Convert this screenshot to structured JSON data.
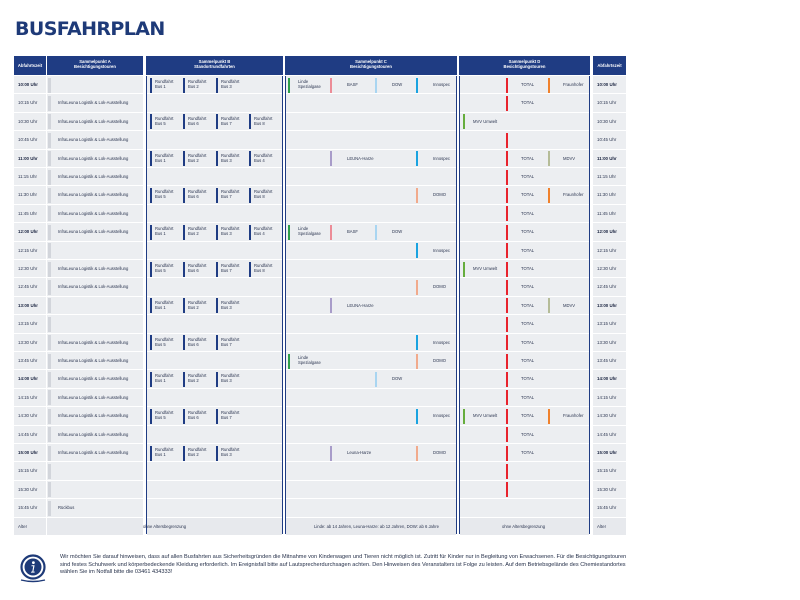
{
  "title": "BUSFAHRPLAN",
  "headers": {
    "time_left": "Abfahrtszeit",
    "time_right": "Abfahrtszeit",
    "a": [
      "Sammelpunkt A",
      "Besichtigungstouren"
    ],
    "b": [
      "Sammelpunkt B",
      "Standortrundfahrten"
    ],
    "c": [
      "Sammelpunkt C",
      "Besichtigungstouren"
    ],
    "d": [
      "Sammelpunkt D",
      "Besichtigungstouren"
    ]
  },
  "colors": {
    "navy": "#1f3c83",
    "linde": "#2e9e4a",
    "basf": "#ec8c97",
    "dow": "#a9d5f1",
    "innospec": "#1aa3e0",
    "leuna": "#a89cc9",
    "domo": "#f1aa8c",
    "mvv": "#66ad3d",
    "total": "#e8232d",
    "fraunhofer": "#f0812c",
    "mdvv": "#b5bc98"
  },
  "rows": [
    {
      "time": "10:00 Uhr",
      "bold": true,
      "a": "",
      "b": [
        [
          "Rundfahrt",
          "Bus 1"
        ],
        [
          "Rundfahrt",
          "Bus 2"
        ],
        [
          "Rundfahrt",
          "Bus 3"
        ]
      ],
      "c": [
        {
          "name": [
            "Linde",
            "Spezialgase"
          ],
          "color": "linde",
          "slot": 0
        },
        {
          "name": [
            "BASF"
          ],
          "color": "basf",
          "slot": 1
        },
        {
          "name": [
            "DOW"
          ],
          "color": "dow",
          "slot": 2
        },
        {
          "name": [
            "Innospec"
          ],
          "color": "innospec",
          "slot": 3
        }
      ],
      "d": [
        {
          "name": [
            "TOTAL"
          ],
          "color": "total",
          "slot": 1
        },
        {
          "name": [
            "Fraunhofer"
          ],
          "color": "fraunhofer",
          "slot": 2
        }
      ]
    },
    {
      "time": "10:15 Uhr",
      "bold": false,
      "a": "InfraLeuna Logistik & Lok-Ausstellung",
      "b": [],
      "c": [],
      "d": [
        {
          "name": [
            "TOTAL"
          ],
          "color": "total",
          "slot": 1
        }
      ]
    },
    {
      "time": "10:30 Uhr",
      "bold": false,
      "a": "InfraLeuna Logistik & Lok-Ausstellung",
      "b": [
        [
          "Rundfahrt",
          "Bus 5"
        ],
        [
          "Rundfahrt",
          "Bus 6"
        ],
        [
          "Rundfahrt",
          "Bus 7"
        ],
        [
          "Rundfahrt",
          "Bus 8"
        ]
      ],
      "c": [],
      "d": [
        {
          "name": [
            "MVV Umwelt"
          ],
          "color": "mvv",
          "slot": 0
        }
      ]
    },
    {
      "time": "10:45 Uhr",
      "bold": false,
      "a": "InfraLeuna Logistik & Lok-Ausstellung",
      "b": [],
      "c": [],
      "d": [
        {
          "name": [
            ""
          ],
          "color": "total",
          "slot": 1
        }
      ]
    },
    {
      "time": "11:00 Uhr",
      "bold": true,
      "a": "InfraLeuna Logistik & Lok-Ausstellung",
      "b": [
        [
          "Rundfahrt",
          "Bus 1"
        ],
        [
          "Rundfahrt",
          "Bus 2"
        ],
        [
          "Rundfahrt",
          "Bus 3"
        ],
        [
          "Rundfahrt",
          "Bus 4"
        ]
      ],
      "c": [
        {
          "name": [
            "LEUNA-Harze"
          ],
          "color": "leuna",
          "slot": 1
        },
        {
          "name": [
            "Innospec"
          ],
          "color": "innospec",
          "slot": 3
        }
      ],
      "d": [
        {
          "name": [
            "TOTAL"
          ],
          "color": "total",
          "slot": 1
        },
        {
          "name": [
            "MDVV"
          ],
          "color": "mdvv",
          "slot": 2
        }
      ]
    },
    {
      "time": "11:15 Uhr",
      "bold": false,
      "a": "InfraLeuna Logistik & Lok-Ausstellung",
      "b": [],
      "c": [],
      "d": [
        {
          "name": [
            "TOTAL"
          ],
          "color": "total",
          "slot": 1
        }
      ]
    },
    {
      "time": "11:30 Uhr",
      "bold": false,
      "a": "InfraLeuna Logistik & Lok-Ausstellung",
      "b": [
        [
          "Rundfahrt",
          "Bus 5"
        ],
        [
          "Rundfahrt",
          "Bus 6"
        ],
        [
          "Rundfahrt",
          "Bus 7"
        ],
        [
          "Rundfahrt",
          "Bus 8"
        ]
      ],
      "c": [
        {
          "name": [
            "DOMO"
          ],
          "color": "domo",
          "slot": 3
        }
      ],
      "d": [
        {
          "name": [
            "TOTAL"
          ],
          "color": "total",
          "slot": 1
        },
        {
          "name": [
            "Fraunhofer"
          ],
          "color": "fraunhofer",
          "slot": 2
        }
      ]
    },
    {
      "time": "11:45 Uhr",
      "bold": false,
      "a": "InfraLeuna Logistik & Lok-Ausstellung",
      "b": [],
      "c": [],
      "d": [
        {
          "name": [
            "TOTAL"
          ],
          "color": "total",
          "slot": 1
        }
      ]
    },
    {
      "time": "12:00 Uhr",
      "bold": true,
      "a": "InfraLeuna Logistik & Lok-Ausstellung",
      "b": [
        [
          "Rundfahrt",
          "Bus 1"
        ],
        [
          "Rundfahrt",
          "Bus 2"
        ],
        [
          "Rundfahrt",
          "Bus 3"
        ],
        [
          "Rundfahrt",
          "Bus 4"
        ]
      ],
      "c": [
        {
          "name": [
            "Linde",
            "Spezialgase"
          ],
          "color": "linde",
          "slot": 0
        },
        {
          "name": [
            "BASF"
          ],
          "color": "basf",
          "slot": 1
        },
        {
          "name": [
            "DOW"
          ],
          "color": "dow",
          "slot": 2
        }
      ],
      "d": [
        {
          "name": [
            "TOTAL"
          ],
          "color": "total",
          "slot": 1
        }
      ]
    },
    {
      "time": "12:15 Uhr",
      "bold": false,
      "a": "",
      "b": [],
      "c": [
        {
          "name": [
            "Innospec"
          ],
          "color": "innospec",
          "slot": 3
        }
      ],
      "d": [
        {
          "name": [
            "TOTAL"
          ],
          "color": "total",
          "slot": 1
        }
      ]
    },
    {
      "time": "12:30 Uhr",
      "bold": false,
      "a": "InfraLeuna Logistik & Lok-Ausstellung",
      "b": [
        [
          "Rundfahrt",
          "Bus 5"
        ],
        [
          "Rundfahrt",
          "Bus 6"
        ],
        [
          "Rundfahrt",
          "Bus 7"
        ],
        [
          "Rundfahrt",
          "Bus 8"
        ]
      ],
      "c": [],
      "d": [
        {
          "name": [
            "MVV Umwelt"
          ],
          "color": "mvv",
          "slot": 0
        },
        {
          "name": [
            "TOTAL"
          ],
          "color": "total",
          "slot": 1
        }
      ]
    },
    {
      "time": "12:45 Uhr",
      "bold": false,
      "a": "InfraLeuna Logistik & Lok-Ausstellung",
      "b": [],
      "c": [
        {
          "name": [
            "DOMO"
          ],
          "color": "domo",
          "slot": 3
        }
      ],
      "d": [
        {
          "name": [
            "TOTAL"
          ],
          "color": "total",
          "slot": 1
        }
      ]
    },
    {
      "time": "13:00 Uhr",
      "bold": true,
      "a": "",
      "b": [
        [
          "Rundfahrt",
          "Bus 1"
        ],
        [
          "Rundfahrt",
          "Bus 2"
        ],
        [
          "Rundfahrt",
          "Bus 3"
        ]
      ],
      "c": [
        {
          "name": [
            "LEUNA-Harze"
          ],
          "color": "leuna",
          "slot": 1
        }
      ],
      "d": [
        {
          "name": [
            "TOTAL"
          ],
          "color": "total",
          "slot": 1
        },
        {
          "name": [
            "MDVV"
          ],
          "color": "mdvv",
          "slot": 2
        }
      ]
    },
    {
      "time": "13:15 Uhr",
      "bold": false,
      "a": "",
      "b": [],
      "c": [],
      "d": [
        {
          "name": [
            "TOTAL"
          ],
          "color": "total",
          "slot": 1
        }
      ]
    },
    {
      "time": "13:30 Uhr",
      "bold": false,
      "a": "InfraLeuna Logistik & Lok-Ausstellung",
      "b": [
        [
          "Rundfahrt",
          "Bus 5"
        ],
        [
          "Rundfahrt",
          "Bus 6"
        ],
        [
          "Rundfahrt",
          "Bus 7"
        ]
      ],
      "c": [
        {
          "name": [
            "Innospec"
          ],
          "color": "innospec",
          "slot": 3
        }
      ],
      "d": [
        {
          "name": [
            "TOTAL"
          ],
          "color": "total",
          "slot": 1
        }
      ]
    },
    {
      "time": "13:45 Uhr",
      "bold": false,
      "a": "InfraLeuna Logistik & Lok-Ausstellung",
      "b": [],
      "c": [
        {
          "name": [
            "Linde",
            "Spezialgase"
          ],
          "color": "linde",
          "slot": 0
        },
        {
          "name": [
            "DOMO"
          ],
          "color": "domo",
          "slot": 3
        }
      ],
      "d": [
        {
          "name": [
            "TOTAL"
          ],
          "color": "total",
          "slot": 1
        }
      ]
    },
    {
      "time": "14:00 Uhr",
      "bold": true,
      "a": "InfraLeuna Logistik & Lok-Ausstellung",
      "b": [
        [
          "Rundfahrt",
          "Bus 1"
        ],
        [
          "Rundfahrt",
          "Bus 2"
        ],
        [
          "Rundfahrt",
          "Bus 3"
        ]
      ],
      "c": [
        {
          "name": [
            "DOW"
          ],
          "color": "dow",
          "slot": 2
        }
      ],
      "d": [
        {
          "name": [
            "TOTAL"
          ],
          "color": "total",
          "slot": 1
        }
      ]
    },
    {
      "time": "14:15 Uhr",
      "bold": false,
      "a": "InfraLeuna Logistik & Lok-Ausstellung",
      "b": [],
      "c": [],
      "d": [
        {
          "name": [
            "TOTAL"
          ],
          "color": "total",
          "slot": 1
        }
      ]
    },
    {
      "time": "14:30 Uhr",
      "bold": false,
      "a": "InfraLeuna Logistik & Lok-Ausstellung",
      "b": [
        [
          "Rundfahrt",
          "Bus 5"
        ],
        [
          "Rundfahrt",
          "Bus 6"
        ],
        [
          "Rundfahrt",
          "Bus 7"
        ]
      ],
      "c": [
        {
          "name": [
            "Innospec"
          ],
          "color": "innospec",
          "slot": 3
        }
      ],
      "d": [
        {
          "name": [
            "MVV Umwelt"
          ],
          "color": "mvv",
          "slot": 0
        },
        {
          "name": [
            "TOTAL"
          ],
          "color": "total",
          "slot": 1
        },
        {
          "name": [
            "Fraunhofer"
          ],
          "color": "fraunhofer",
          "slot": 2
        }
      ]
    },
    {
      "time": "14:45 Uhr",
      "bold": false,
      "a": "InfraLeuna Logistik & Lok-Ausstellung",
      "b": [],
      "c": [],
      "d": [
        {
          "name": [
            "TOTAL"
          ],
          "color": "total",
          "slot": 1
        }
      ]
    },
    {
      "time": "15:00 Uhr",
      "bold": true,
      "a": "InfraLeuna Logistik & Lok-Ausstellung",
      "b": [
        [
          "Rundfahrt",
          "Bus 1"
        ],
        [
          "Rundfahrt",
          "Bus 2"
        ],
        [
          "Rundfahrt",
          "Bus 3"
        ]
      ],
      "c": [
        {
          "name": [
            "Leuna-Harze"
          ],
          "color": "leuna",
          "slot": 1
        },
        {
          "name": [
            "DOMO"
          ],
          "color": "domo",
          "slot": 3
        }
      ],
      "d": [
        {
          "name": [
            "TOTAL"
          ],
          "color": "total",
          "slot": 1
        }
      ]
    },
    {
      "time": "15:15 Uhr",
      "bold": false,
      "a": "",
      "b": [],
      "c": [],
      "d": [
        {
          "name": [
            ""
          ],
          "color": "total",
          "slot": 1
        }
      ]
    },
    {
      "time": "15:30 Uhr",
      "bold": false,
      "a": "",
      "b": [],
      "c": [],
      "d": [
        {
          "name": [
            ""
          ],
          "color": "total",
          "slot": 1
        }
      ]
    },
    {
      "time": "15:45 Uhr",
      "bold": false,
      "a": "Rückbus",
      "b": [],
      "c": [],
      "d": []
    }
  ],
  "footer": {
    "time": "Alter",
    "a_b": "ohne Altersbegrenzung",
    "c": "Linde: ab 14 Jahren, Leuna-Harze: ab 12 Jahren, DOW: ab 6 Jahre",
    "d": "ohne Altersbegrenzung",
    "time_right": "Alter"
  },
  "footnote": "Wir möchten Sie darauf hinweisen, dass auf allen Busfahrten aus Sicherheitsgründen die Mitnahme von Kinderwagen und Tieren nicht möglich ist. Zutritt für Kinder nur in Begleitung von Erwachsenen. Für die Besichtigungstouren sind festes Schuhwerk und körperbedeckende Kleidung erforderlich. Im Ereignisfall bitte auf Lautsprecherdurchsagen achten. Den Hinweisen des Veranstalters ist Folge zu leisten. Auf dem Betriebsgelände des Chemiestandortes wählen Sie im Notfall bitte die 03461 434333!"
}
